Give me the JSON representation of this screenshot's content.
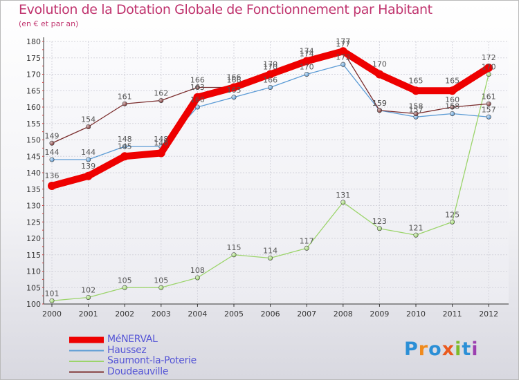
{
  "header": {
    "title": "Evolution de la Dotation Globale de Fonctionnement par Habitant",
    "subtitle": "(en € et par an)"
  },
  "logo": {
    "text": "Proxiti",
    "colors": [
      "#2b8fd6",
      "#f08a1c",
      "#2b8fd6",
      "#ea5a1e",
      "#7dbb2a",
      "#2b8fd6",
      "#9c3fb0"
    ]
  },
  "chart_data": {
    "type": "line",
    "x": [
      "2000",
      "2001",
      "2002",
      "2003",
      "2004",
      "2005",
      "2006",
      "2007",
      "2008",
      "2009",
      "2010",
      "2011",
      "2012"
    ],
    "ylim": [
      100,
      180
    ],
    "yticks": [
      100,
      105,
      110,
      115,
      120,
      125,
      130,
      135,
      140,
      145,
      150,
      155,
      160,
      165,
      170,
      175,
      180
    ],
    "grid": true,
    "legend_position": "bottom-left",
    "series": [
      {
        "name": "MéNERVAL",
        "color": "#ee0000",
        "width": 10,
        "marker": 6,
        "values": [
          136,
          139,
          145,
          146,
          163,
          166,
          170,
          174,
          177,
          170,
          165,
          165,
          172
        ]
      },
      {
        "name": "Haussez",
        "color": "#5b9bd5",
        "width": 1.3,
        "marker": 3.2,
        "values": [
          144,
          144,
          148,
          148,
          160,
          163,
          166,
          170,
          173,
          159,
          157,
          158,
          157
        ]
      },
      {
        "name": "Saumont-la-Poterie",
        "color": "#9bd46a",
        "width": 1.3,
        "marker": 3.2,
        "values": [
          101,
          102,
          105,
          105,
          108,
          115,
          114,
          117,
          131,
          123,
          121,
          125,
          170
        ]
      },
      {
        "name": "Doudeauville",
        "color": "#7a2c2c",
        "width": 1.3,
        "marker": 3.2,
        "values": [
          149,
          154,
          161,
          162,
          166,
          166,
          170,
          174,
          177,
          159,
          158,
          160,
          161
        ]
      }
    ]
  }
}
